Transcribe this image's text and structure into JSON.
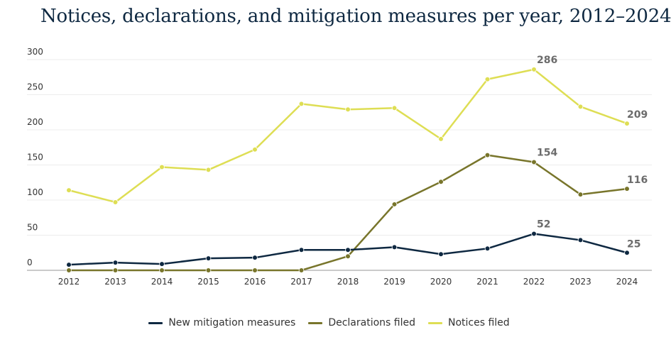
{
  "chart_data": {
    "type": "line",
    "title": "Notices, declarations, and mitigation measures per year, 2012–2024",
    "xlabel": "",
    "ylabel": "",
    "x": [
      "2012",
      "2013",
      "2014",
      "2015",
      "2016",
      "2017",
      "2018",
      "2019",
      "2020",
      "2021",
      "2022",
      "2023",
      "2024"
    ],
    "ylim": [
      0,
      300
    ],
    "yticks": [
      0,
      50,
      100,
      150,
      200,
      250,
      300
    ],
    "grid": true,
    "legend_position": "bottom",
    "series": [
      {
        "name": "New mitigation measures",
        "color": "#0e2841",
        "values": [
          8,
          11,
          9,
          17,
          18,
          29,
          29,
          33,
          23,
          31,
          52,
          43,
          25
        ]
      },
      {
        "name": "Declarations filed",
        "color": "#78752b",
        "values": [
          0,
          0,
          0,
          0,
          0,
          0,
          20,
          94,
          126,
          164,
          154,
          108,
          116
        ]
      },
      {
        "name": "Notices filed",
        "color": "#dede54",
        "values": [
          114,
          97,
          147,
          143,
          172,
          237,
          229,
          231,
          187,
          272,
          286,
          233,
          209
        ]
      }
    ],
    "annotations": [
      {
        "series": 0,
        "index": 10,
        "text": "52"
      },
      {
        "series": 0,
        "index": 12,
        "text": "25"
      },
      {
        "series": 1,
        "index": 10,
        "text": "154"
      },
      {
        "series": 1,
        "index": 12,
        "text": "116"
      },
      {
        "series": 2,
        "index": 10,
        "text": "286"
      },
      {
        "series": 2,
        "index": 12,
        "text": "209"
      }
    ]
  }
}
